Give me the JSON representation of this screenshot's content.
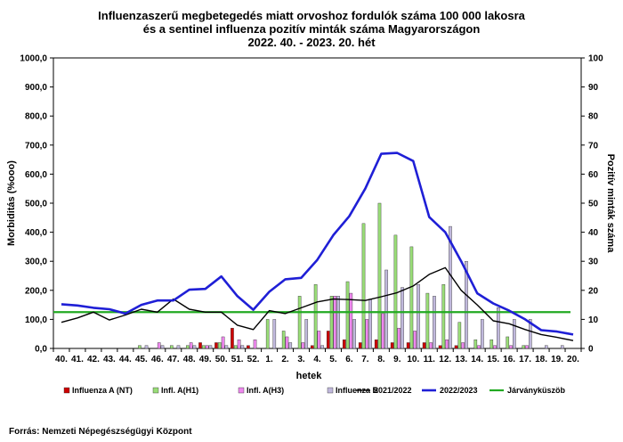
{
  "chart_data": {
    "type": "bar",
    "title_lines": [
      "Influenzaszerű megbetegedés miatt orvoshoz fordulók száma 100 000 lakosra",
      "és a sentinel influenza pozitív minták száma Magyarországon",
      "2022. 40. - 2023. 20. hét"
    ],
    "xlabel": "hetek",
    "ylabel_left": "Morbiditás (%ooo)",
    "ylabel_right": "Pozitív minták száma",
    "ylim_left": [
      0,
      1000
    ],
    "ylim_right": [
      0,
      100
    ],
    "left_ticks": [
      "0,0",
      "100,0",
      "200,0",
      "300,0",
      "400,0",
      "500,0",
      "600,0",
      "700,0",
      "800,0",
      "900,0",
      "1000,0"
    ],
    "right_ticks": [
      "0",
      "10",
      "20",
      "30",
      "40",
      "50",
      "60",
      "70",
      "80",
      "90",
      "100"
    ],
    "categories": [
      "40.",
      "41.",
      "42.",
      "43.",
      "44.",
      "45.",
      "46.",
      "47.",
      "48.",
      "49.",
      "50.",
      "51.",
      "52.",
      "1.",
      "2.",
      "3.",
      "4.",
      "5.",
      "6.",
      "7.",
      "8.",
      "9.",
      "10.",
      "11.",
      "12.",
      "13.",
      "14.",
      "15.",
      "16.",
      "17.",
      "18.",
      "19.",
      "20."
    ],
    "bar_series": [
      {
        "name": "Influenza A (NT)",
        "color": "#cc0000",
        "values": [
          0,
          0,
          0,
          0,
          0,
          0,
          0,
          0,
          0,
          2,
          2,
          7,
          1,
          0,
          0,
          0,
          1,
          6,
          3,
          2,
          3,
          2,
          2,
          2,
          1,
          1,
          0,
          0,
          0,
          0,
          0,
          0,
          0
        ]
      },
      {
        "name": "Infl. A(H1)",
        "color": "#99dd77",
        "values": [
          0,
          0,
          0,
          0,
          0,
          1,
          0,
          1,
          1,
          1,
          2,
          1,
          0,
          10,
          6,
          18,
          22,
          18,
          23,
          43,
          50,
          39,
          35,
          19,
          22,
          9,
          3,
          3,
          4,
          1,
          0,
          0,
          0
        ]
      },
      {
        "name": "Infl. A(H3)",
        "color": "#ee88ee",
        "values": [
          0,
          0,
          0,
          0,
          0,
          0,
          2,
          0,
          2,
          1,
          4,
          3,
          3,
          0,
          4,
          2,
          6,
          18,
          19,
          10,
          12,
          7,
          6,
          2,
          3,
          2,
          1,
          1,
          1,
          1,
          0,
          0,
          0
        ]
      },
      {
        "name": "Influenza B",
        "color": "#c0b8dc",
        "values": [
          0,
          0,
          0,
          0,
          0,
          1,
          1,
          1,
          1,
          1,
          1,
          1,
          0,
          10,
          2,
          10,
          1,
          18,
          10,
          17,
          27,
          21,
          22,
          18,
          42,
          30,
          10,
          14,
          10,
          10,
          1,
          1,
          0
        ]
      }
    ],
    "line_series": [
      {
        "name": "2021/2022",
        "color": "#000000",
        "values": [
          90,
          105,
          125,
          98,
          115,
          135,
          125,
          170,
          135,
          125,
          125,
          80,
          65,
          130,
          120,
          140,
          160,
          170,
          168,
          165,
          178,
          192,
          215,
          255,
          278,
          200,
          150,
          95,
          85,
          65,
          48,
          38,
          27
        ]
      },
      {
        "name": "2022/2023",
        "color": "#1f1fd6",
        "values": [
          152,
          148,
          140,
          135,
          120,
          150,
          165,
          165,
          202,
          205,
          248,
          180,
          133,
          195,
          238,
          243,
          305,
          390,
          455,
          550,
          670,
          673,
          645,
          452,
          400,
          300,
          190,
          155,
          130,
          100,
          63,
          58,
          48
        ]
      }
    ],
    "threshold": {
      "name": "Járványküszöb",
      "color": "#22aa22",
      "value": 125
    }
  },
  "source_text": "Forrás: Nemzeti Népegészségügyi Központ"
}
